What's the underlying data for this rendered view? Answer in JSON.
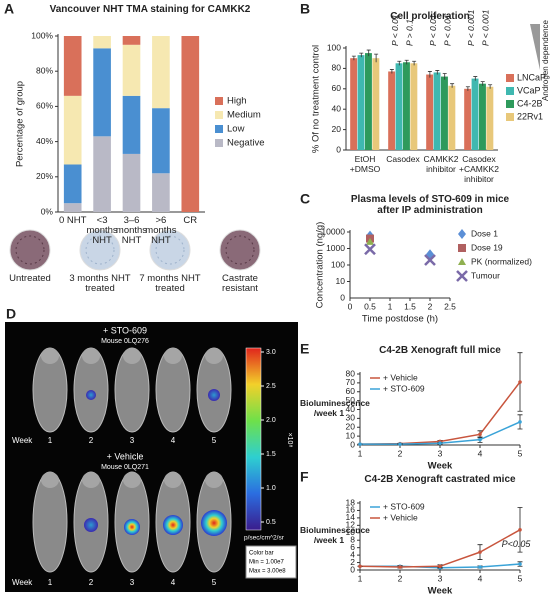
{
  "chart_data": [
    {
      "type": "stacked_bar",
      "panel_label": "A",
      "title": "Vancouver NHT TMA staining for CAMKK2",
      "y_label": "Percentage of group",
      "categories": [
        "0 NHT",
        "<3 months NHT",
        "3–6 months NHT",
        ">6 months NHT",
        "CR"
      ],
      "series": [
        {
          "name": "Negative",
          "color": "#b9b9c6",
          "values": [
            5,
            43,
            33,
            22,
            0
          ]
        },
        {
          "name": "Low",
          "color": "#4a8fd1",
          "values": [
            22,
            50,
            33,
            37,
            0
          ]
        },
        {
          "name": "Medium",
          "color": "#f6e8b1",
          "values": [
            39,
            7,
            29,
            41,
            0
          ]
        },
        {
          "name": "High",
          "color": "#d9705a",
          "values": [
            34,
            0,
            5,
            0,
            100
          ]
        }
      ],
      "ylim": [
        0,
        100
      ],
      "yticks": [
        {
          "value": 0,
          "label": "0%"
        },
        {
          "value": 20,
          "label": "20%"
        },
        {
          "value": 40,
          "label": "40%"
        },
        {
          "value": 60,
          "label": "60%"
        },
        {
          "value": 80,
          "label": "80%"
        },
        {
          "value": 100,
          "label": "100%"
        }
      ],
      "legend": "right",
      "image_labels": [
        "Untreated",
        "3 months NHT treated",
        "7 months NHT treated",
        "Castrate resistant"
      ]
    },
    {
      "type": "bar",
      "panel_label": "B",
      "title": "Cell proliferation",
      "y_label": "% Of no treatment control",
      "categories": [
        "EtOH +DMSO",
        "Casodex",
        "CAMKK2 inhibitor",
        "Casodex +CAMKK2 inhibitor"
      ],
      "series": [
        {
          "name": "LNCaP",
          "color": "#d9705a",
          "values": [
            90,
            77,
            74,
            60
          ],
          "errors": [
            2,
            2,
            3,
            2
          ]
        },
        {
          "name": "VCaP",
          "color": "#3fb8b0",
          "values": [
            93,
            85,
            76,
            70
          ],
          "errors": [
            2,
            2,
            2,
            2
          ]
        },
        {
          "name": "C4-2B",
          "color": "#2e9a5c",
          "values": [
            95,
            86,
            72,
            65
          ],
          "errors": [
            3,
            2,
            3,
            2
          ]
        },
        {
          "name": "22Rv1",
          "color": "#e8c87a",
          "values": [
            90,
            85,
            63,
            62
          ],
          "errors": [
            4,
            2,
            2,
            2
          ]
        }
      ],
      "ylim": [
        0,
        100
      ],
      "yticks": [
        0,
        20,
        40,
        60,
        80,
        100
      ],
      "legend": "right",
      "p_values": [
        [],
        [
          "P < 0.01",
          "P > 0.1"
        ],
        [
          "P < 0.01",
          "P < 0.01"
        ],
        [
          "P < 0.001",
          "P < 0.001"
        ]
      ],
      "side_label": "Androgen dependence"
    },
    {
      "type": "scatter",
      "panel_label": "C",
      "title": "Plasma levels of STO-609 in mice after IP administration",
      "x_label": "Time postdose (h)",
      "y_label": "Concentration (ng/g)",
      "log_y": true,
      "xlim": [
        0,
        2.5
      ],
      "xticks": [
        0,
        0.5,
        1,
        1.5,
        2,
        2.5
      ],
      "ylim": [
        1,
        10000
      ],
      "yticks": [
        10,
        100,
        1000,
        10000
      ],
      "y_origin_label": "0",
      "series": [
        {
          "name": "Dose 1",
          "color": "#5b8fd6",
          "marker": "diamond",
          "x": [
            0.5,
            2
          ],
          "values": [
            6000,
            450
          ]
        },
        {
          "name": "Dose 19",
          "color": "#b06060",
          "marker": "square",
          "x": [
            0.5
          ],
          "values": [
            4000
          ]
        },
        {
          "name": "PK (normalized)",
          "color": "#8fb050",
          "marker": "triangle",
          "x": [
            0.5
          ],
          "values": [
            2500
          ]
        },
        {
          "name": "Tumour",
          "color": "#7a6aa8",
          "marker": "x",
          "x": [
            0.5,
            2
          ],
          "values": [
            900,
            200
          ]
        }
      ],
      "legend": "right"
    },
    {
      "type": "line",
      "panel_label": "E",
      "title": "C4-2B Xenograft full mice",
      "x_label": "Week",
      "y_label": "Bioluminescence /week 1",
      "xlim": [
        1,
        5
      ],
      "xticks": [
        1,
        2,
        3,
        4,
        5
      ],
      "x": [
        1,
        2,
        3,
        4,
        5
      ],
      "ylim": [
        0,
        80
      ],
      "yticks": [
        0,
        10,
        20,
        30,
        40,
        50,
        60,
        70,
        80
      ],
      "series": [
        {
          "name": "+ Vehicle",
          "color": "#c8553d",
          "values": [
            1,
            1.5,
            4,
            12,
            71
          ],
          "errors": [
            0,
            0.5,
            1,
            4,
            33
          ]
        },
        {
          "name": "+ STO-609",
          "color": "#3aa3d8",
          "values": [
            1,
            1,
            2,
            6,
            26
          ],
          "errors": [
            0,
            0.3,
            1,
            3,
            8
          ]
        }
      ]
    },
    {
      "type": "line",
      "panel_label": "F",
      "title": "C4-2B Xenograft castrated mice",
      "x_label": "Week",
      "y_label": "Bioluminescence /week 1",
      "xlim": [
        1,
        5
      ],
      "xticks": [
        1,
        2,
        3,
        4,
        5
      ],
      "x": [
        1,
        2,
        3,
        4,
        5
      ],
      "ylim": [
        0,
        18
      ],
      "yticks": [
        0,
        2,
        4,
        6,
        8,
        10,
        12,
        14,
        16,
        18
      ],
      "series": [
        {
          "name": "+ STO-609",
          "color": "#3aa3d8",
          "values": [
            1,
            1,
            0.6,
            0.8,
            1.6
          ],
          "errors": [
            0,
            0.2,
            0.2,
            0.3,
            0.6
          ]
        },
        {
          "name": "+ Vehicle",
          "color": "#c8553d",
          "values": [
            1,
            0.8,
            1,
            4.8,
            10.8
          ],
          "errors": [
            0,
            0.3,
            0.4,
            2,
            6
          ]
        }
      ],
      "annotation": "P<0.05"
    }
  ],
  "panel_d": {
    "panel_label": "D",
    "top": {
      "treatment": "+ STO-609",
      "mouse": "Mouse 0LQ276"
    },
    "bottom": {
      "treatment": "+ Vehicle",
      "mouse": "Mouse 0LQ271"
    },
    "week_label": "Week",
    "weeks": [
      "1",
      "2",
      "3",
      "4",
      "5"
    ],
    "colorbar": {
      "ticks": [
        "3.0",
        "2.5",
        "2.0",
        "1.5",
        "1.0",
        "0.5"
      ],
      "exponent": "×10⁸",
      "unit": "p/sec/cm^2/sr",
      "box_title": "Color bar",
      "min": "Min = 1.00e7",
      "max": "Max = 3.00e8"
    }
  }
}
